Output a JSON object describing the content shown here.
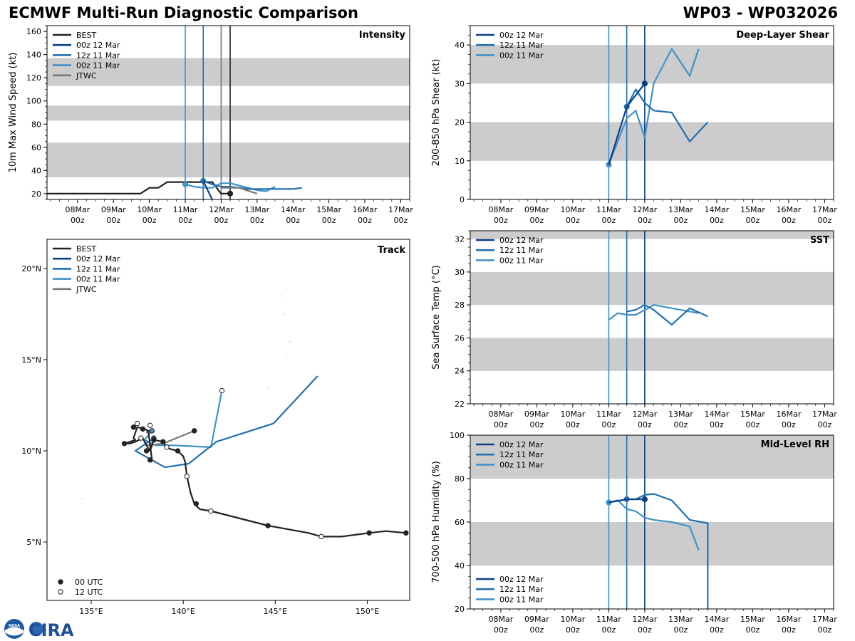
{
  "header": {
    "title": "ECMWF Multi-Run Diagnostic Comparison",
    "storm": "WP03 - WP032026"
  },
  "logos": {
    "noaa_text": "NOAA",
    "cira_text": "CIRA"
  },
  "colors": {
    "best": "#222222",
    "run_00z12": "#0b3f86",
    "run_12z11": "#2070b4",
    "run_00z11": "#4292c6",
    "jtwc": "#777777",
    "band": "#cccccc"
  },
  "time_axis": {
    "ticks": [
      {
        "day": 8,
        "l1": "08Mar",
        "l2": "00z"
      },
      {
        "day": 9,
        "l1": "09Mar",
        "l2": "00z"
      },
      {
        "day": 10,
        "l1": "10Mar",
        "l2": "00z"
      },
      {
        "day": 11,
        "l1": "11Mar",
        "l2": "00z"
      },
      {
        "day": 12,
        "l1": "12Mar",
        "l2": "00z"
      },
      {
        "day": 13,
        "l1": "13Mar",
        "l2": "00z"
      },
      {
        "day": 14,
        "l1": "14Mar",
        "l2": "00z"
      },
      {
        "day": 15,
        "l1": "15Mar",
        "l2": "00z"
      },
      {
        "day": 16,
        "l1": "16Mar",
        "l2": "00z"
      },
      {
        "day": 17,
        "l1": "17Mar",
        "l2": "00z"
      }
    ]
  },
  "chart_data": [
    {
      "id": "intensity",
      "type": "line",
      "title": "Intensity",
      "ylabel": "10m Max Wind Speed (kt)",
      "xlim": [
        7.15,
        17.25
      ],
      "ylim": [
        15,
        165
      ],
      "yticks": [
        20,
        40,
        60,
        80,
        100,
        120,
        140,
        160
      ],
      "bands": [
        [
          34,
          64
        ],
        [
          83,
          96
        ],
        [
          113,
          137
        ]
      ],
      "vlines": [
        {
          "x": 11.0,
          "color": "run_00z11"
        },
        {
          "x": 11.5,
          "color": "run_12z11"
        },
        {
          "x": 12.0,
          "color": "jtwc"
        },
        {
          "x": 12.25,
          "color": "best"
        }
      ],
      "legend": [
        {
          "label": "BEST",
          "color": "best"
        },
        {
          "label": "00z 12 Mar",
          "color": "run_00z12"
        },
        {
          "label": "12z 11 Mar",
          "color": "run_12z11"
        },
        {
          "label": "00z 11 Mar",
          "color": "run_00z11"
        },
        {
          "label": "JTWC",
          "color": "jtwc"
        }
      ],
      "series": [
        {
          "name": "BEST",
          "color": "best",
          "x": [
            7.15,
            9.75,
            10.0,
            10.25,
            10.5,
            11.0,
            11.5,
            11.75,
            12.0,
            12.25
          ],
          "y": [
            20,
            20,
            25,
            25,
            30,
            30,
            30,
            30,
            20,
            20
          ],
          "markers": [
            {
              "x": 12.25,
              "y": 20,
              "fill": "filled"
            }
          ]
        },
        {
          "name": "00z 11 Mar",
          "color": "run_00z11",
          "x": [
            11.0,
            11.25,
            11.5,
            11.75,
            12.0,
            12.25,
            12.5,
            12.75,
            13.0,
            13.25,
            13.5
          ],
          "y": [
            28,
            26,
            25,
            25,
            29,
            29,
            27,
            25,
            23,
            22,
            26
          ],
          "markers": [
            {
              "x": 11.0,
              "y": 28,
              "fill": "filled"
            }
          ]
        },
        {
          "name": "12z 11 Mar",
          "color": "run_12z11",
          "x": [
            11.5,
            11.75,
            12.0,
            12.25,
            12.5,
            12.75,
            13.0,
            13.5,
            14.0,
            14.25
          ],
          "y": [
            31,
            28,
            26,
            26,
            25,
            24,
            24,
            24,
            24,
            25
          ],
          "markers": [
            {
              "x": 11.5,
              "y": 31,
              "fill": "filled"
            }
          ]
        },
        {
          "name": "00z 12 Mar",
          "color": "run_00z12",
          "x": [
            11.5,
            11.75
          ],
          "y": [
            31,
            15
          ],
          "markers": []
        },
        {
          "name": "JTWC",
          "color": "jtwc",
          "x": [
            12.0,
            12.5,
            13.0
          ],
          "y": [
            25,
            25,
            20
          ],
          "markers": []
        }
      ]
    },
    {
      "id": "shear",
      "type": "line",
      "title": "Deep-Layer Shear",
      "ylabel": "200-850 hPa Shear (kt)",
      "xlim": [
        7.15,
        17.25
      ],
      "ylim": [
        0,
        45
      ],
      "yticks": [
        0,
        10,
        20,
        30,
        40
      ],
      "bands": [
        [
          10,
          20
        ],
        [
          30,
          40
        ]
      ],
      "vlines": [
        {
          "x": 11.0,
          "color": "run_00z11"
        },
        {
          "x": 11.5,
          "color": "run_12z11"
        },
        {
          "x": 12.0,
          "color": "run_00z12"
        }
      ],
      "legend": [
        {
          "label": "00z 12 Mar",
          "color": "run_00z12"
        },
        {
          "label": "12z 11 Mar",
          "color": "run_12z11"
        },
        {
          "label": "00z 11 Mar",
          "color": "run_00z11"
        }
      ],
      "series": [
        {
          "name": "00z 11 Mar",
          "color": "run_00z11",
          "x": [
            11.0,
            11.5,
            11.75,
            12.0,
            12.25,
            12.75,
            13.25,
            13.5
          ],
          "y": [
            9,
            21,
            23,
            16,
            30,
            39,
            32,
            39
          ],
          "markers": [
            {
              "x": 11.0,
              "y": 9,
              "fill": "filled"
            }
          ]
        },
        {
          "name": "12z 11 Mar",
          "color": "run_12z11",
          "x": [
            11.5,
            11.75,
            12.0,
            12.25,
            12.75,
            13.25,
            13.75
          ],
          "y": [
            24,
            28.5,
            25,
            23,
            22.5,
            15,
            20
          ],
          "markers": [
            {
              "x": 11.5,
              "y": 24,
              "fill": "filled"
            }
          ]
        },
        {
          "name": "00z 12 Mar",
          "color": "run_00z12",
          "x": [
            11.0,
            11.5,
            12.0
          ],
          "y": [
            9,
            24,
            30
          ],
          "markers": [
            {
              "x": 12.0,
              "y": 30,
              "fill": "filled"
            }
          ]
        }
      ]
    },
    {
      "id": "sst",
      "type": "line",
      "title": "SST",
      "ylabel": "Sea Surface Temp (°C)",
      "xlim": [
        7.15,
        17.25
      ],
      "ylim": [
        22,
        32.5
      ],
      "yticks": [
        22,
        24,
        26,
        28,
        30,
        32
      ],
      "bands": [
        [
          24,
          26
        ],
        [
          28,
          30
        ],
        [
          32,
          32.5
        ]
      ],
      "vlines": [
        {
          "x": 11.0,
          "color": "run_00z11"
        },
        {
          "x": 11.5,
          "color": "run_12z11"
        },
        {
          "x": 12.0,
          "color": "run_00z12"
        }
      ],
      "legend": [
        {
          "label": "00z 12 Mar",
          "color": "run_00z12"
        },
        {
          "label": "12z 11 Mar",
          "color": "run_12z11"
        },
        {
          "label": "00z 11 Mar",
          "color": "run_00z11"
        }
      ],
      "series": [
        {
          "name": "00z 11 Mar",
          "color": "run_00z11",
          "x": [
            11.0,
            11.25,
            11.5,
            11.75,
            12.0,
            12.25,
            12.75,
            13.25,
            13.5
          ],
          "y": [
            27.1,
            27.5,
            27.4,
            27.4,
            27.7,
            28.0,
            27.8,
            27.6,
            27.5
          ],
          "markers": []
        },
        {
          "name": "12z 11 Mar",
          "color": "run_12z11",
          "x": [
            11.5,
            11.75,
            12.0,
            12.25,
            12.75,
            13.25,
            13.75
          ],
          "y": [
            27.6,
            27.7,
            28.0,
            27.7,
            26.8,
            27.8,
            27.3
          ],
          "markers": []
        },
        {
          "name": "00z 12 Mar",
          "color": "run_00z12",
          "x": [
            12.0
          ],
          "y": [
            28.0
          ],
          "markers": []
        }
      ]
    },
    {
      "id": "rh",
      "type": "line",
      "title": "Mid-Level RH",
      "ylabel": "700-500 hPa Humidity (%)",
      "xlim": [
        7.15,
        17.25
      ],
      "ylim": [
        20,
        100
      ],
      "yticks": [
        20,
        40,
        60,
        80,
        100
      ],
      "bands": [
        [
          40,
          60
        ],
        [
          80,
          100
        ]
      ],
      "vlines": [
        {
          "x": 11.0,
          "color": "run_00z11"
        },
        {
          "x": 11.5,
          "color": "run_12z11"
        },
        {
          "x": 12.0,
          "color": "run_00z12"
        }
      ],
      "legend": [
        {
          "label": "00z 12 Mar",
          "color": "run_00z12"
        },
        {
          "label": "12z 11 Mar",
          "color": "run_12z11"
        },
        {
          "label": "00z 11 Mar",
          "color": "run_00z11"
        }
      ],
      "series": [
        {
          "name": "00z 11 Mar",
          "color": "run_00z11",
          "x": [
            11.0,
            11.25,
            11.5,
            11.75,
            12.0,
            12.25,
            12.75,
            13.25,
            13.5
          ],
          "y": [
            69,
            70,
            66,
            65,
            62,
            61,
            60,
            58,
            47
          ],
          "markers": [
            {
              "x": 11.0,
              "y": 69,
              "fill": "filled"
            }
          ]
        },
        {
          "name": "12z 11 Mar",
          "color": "run_12z11",
          "x": [
            11.5,
            11.75,
            12.0,
            12.25,
            12.75,
            13.25,
            13.75,
            13.75
          ],
          "y": [
            70.5,
            70.5,
            72.5,
            73,
            70,
            61,
            59.5,
            19
          ],
          "markers": [
            {
              "x": 11.5,
              "y": 70.5,
              "fill": "filled"
            }
          ]
        },
        {
          "name": "00z 12 Mar",
          "color": "run_00z12",
          "x": [
            11.0,
            11.5,
            12.0
          ],
          "y": [
            69,
            70.5,
            70.5
          ],
          "markers": [
            {
              "x": 12.0,
              "y": 70.5,
              "fill": "filled"
            }
          ]
        }
      ]
    },
    {
      "id": "track",
      "type": "line",
      "title": "Track",
      "xlim": [
        132.6,
        152.3
      ],
      "ylim": [
        1.8,
        21.6
      ],
      "xticks": [
        {
          "v": 135,
          "label": "135°E"
        },
        {
          "v": 140,
          "label": "140°E"
        },
        {
          "v": 145,
          "label": "145°E"
        },
        {
          "v": 150,
          "label": "150°E"
        }
      ],
      "yticks": [
        {
          "v": 5,
          "label": "5°N"
        },
        {
          "v": 10,
          "label": "10°N"
        },
        {
          "v": 15,
          "label": "15°N"
        },
        {
          "v": 20,
          "label": "20°N"
        }
      ],
      "legend": [
        {
          "label": "BEST",
          "color": "best"
        },
        {
          "label": "00z 12 Mar",
          "color": "run_00z12"
        },
        {
          "label": "12z 11 Mar",
          "color": "run_12z11"
        },
        {
          "label": "00z 11 Mar",
          "color": "run_00z11"
        },
        {
          "label": "JTWC",
          "color": "jtwc"
        }
      ],
      "marker_legend": [
        {
          "label": "00 UTC",
          "fill": "filled"
        },
        {
          "label": "12 UTC",
          "fill": "open"
        }
      ],
      "series": [
        {
          "name": "BEST",
          "color": "best",
          "lon": [
            152.1,
            151.0,
            150.1,
            148.6,
            147.5,
            146.8,
            144.6,
            141.5,
            140.9,
            140.6,
            140.4,
            140.2,
            140.1,
            140.0,
            139.7,
            139.3,
            139.1,
            138.9,
            138.4,
            138.2,
            138.0,
            137.8,
            137.4,
            137.1,
            136.8,
            137.4,
            137.3,
            137.5,
            137.9,
            138.1,
            138.3
          ],
          "lat": [
            5.5,
            5.6,
            5.5,
            5.3,
            5.3,
            5.5,
            5.9,
            6.7,
            6.8,
            7.1,
            7.7,
            8.6,
            9.4,
            9.7,
            10.0,
            10.1,
            10.2,
            10.5,
            10.6,
            10.0,
            10.3,
            10.7,
            10.5,
            10.4,
            10.4,
            10.6,
            10.7,
            11.3,
            11.2,
            11.1,
            9.5
          ],
          "markers": [
            {
              "lon": 152.1,
              "lat": 5.5,
              "fill": "filled"
            },
            {
              "lon": 150.1,
              "lat": 5.5,
              "fill": "filled"
            },
            {
              "lon": 147.5,
              "lat": 5.3,
              "fill": "open"
            },
            {
              "lon": 144.6,
              "lat": 5.9,
              "fill": "filled"
            },
            {
              "lon": 141.5,
              "lat": 6.7,
              "fill": "open"
            },
            {
              "lon": 140.7,
              "lat": 7.1,
              "fill": "filled"
            },
            {
              "lon": 140.2,
              "lat": 8.6,
              "fill": "open"
            },
            {
              "lon": 139.7,
              "lat": 10.0,
              "fill": "filled"
            },
            {
              "lon": 139.1,
              "lat": 10.2,
              "fill": "open"
            },
            {
              "lon": 138.9,
              "lat": 10.5,
              "fill": "filled"
            },
            {
              "lon": 138.4,
              "lat": 10.6,
              "fill": "filled"
            },
            {
              "lon": 138.0,
              "lat": 10.0,
              "fill": "filled"
            },
            {
              "lon": 138.2,
              "lat": 9.5,
              "fill": "filled"
            },
            {
              "lon": 137.7,
              "lat": 10.7,
              "fill": "open"
            },
            {
              "lon": 136.8,
              "lat": 10.4,
              "fill": "filled"
            },
            {
              "lon": 137.3,
              "lat": 11.3,
              "fill": "filled"
            },
            {
              "lon": 137.5,
              "lat": 11.5,
              "fill": "open"
            },
            {
              "lon": 137.8,
              "lat": 11.2,
              "fill": "filled"
            },
            {
              "lon": 138.2,
              "lat": 11.4,
              "fill": "open"
            },
            {
              "lon": 140.6,
              "lat": 11.1,
              "fill": "filled"
            }
          ]
        },
        {
          "name": "00z 11 Mar",
          "color": "run_00z11",
          "lon": [
            138.3,
            137.9,
            138.5,
            139.5,
            141.5,
            142.1
          ],
          "lat": [
            11.1,
            10.6,
            10.3,
            10.3,
            10.2,
            13.3
          ],
          "markers": [
            {
              "lon": 138.3,
              "lat": 11.1,
              "fill": "filled"
            },
            {
              "lon": 142.1,
              "lat": 13.3,
              "fill": "open"
            }
          ]
        },
        {
          "name": "12z 11 Mar",
          "color": "run_12z11",
          "lon": [
            138.4,
            137.4,
            139.0,
            140.3,
            141.8,
            144.9,
            147.3
          ],
          "lat": [
            10.7,
            10.0,
            9.1,
            9.3,
            10.5,
            11.5,
            14.1
          ],
          "markers": [
            {
              "lon": 138.4,
              "lat": 10.7,
              "fill": "filled"
            }
          ]
        },
        {
          "name": "00z 12 Mar",
          "color": "run_00z12",
          "lon": [
            138.0,
            138.3
          ],
          "lat": [
            11.0,
            11.2
          ],
          "markers": []
        },
        {
          "name": "JTWC",
          "color": "jtwc",
          "lon": [
            138.0,
            138.9,
            140.6
          ],
          "lat": [
            10.3,
            10.4,
            11.1
          ],
          "markers": []
        }
      ]
    }
  ]
}
